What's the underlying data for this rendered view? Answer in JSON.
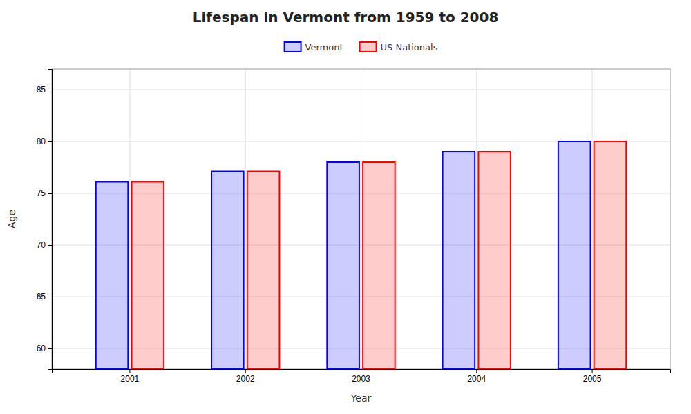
{
  "chart_data": {
    "type": "bar",
    "title": "Lifespan in Vermont from 1959 to 2008",
    "x_label": "Year",
    "y_label": "Age",
    "categories": [
      "2001",
      "2002",
      "2003",
      "2004",
      "2005"
    ],
    "series": [
      {
        "name": "Vermont",
        "color": "#0000ff",
        "values": [
          76.1,
          77.1,
          78.0,
          79.0,
          80.0
        ]
      },
      {
        "name": "US Nationals",
        "color": "#ff0000",
        "values": [
          76.1,
          77.1,
          78.0,
          79.0,
          80.0
        ]
      }
    ],
    "ylim": [
      58,
      87
    ],
    "yticks": [
      60,
      65,
      70,
      75,
      80,
      85
    ],
    "grid": true,
    "legend": "top"
  }
}
